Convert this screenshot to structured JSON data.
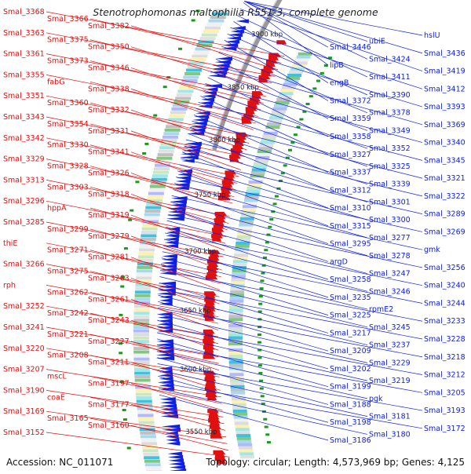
{
  "title": "Stenotrophomonas maltophilia R551-3, complete genome",
  "footer": {
    "accession": "Accession: NC_011071",
    "summary": "Topology: circular; Length: 4,573,969 bp; Genes: 4,125"
  },
  "scale_labels": [
    "3900 kbp",
    "3850 kbp",
    "3800 kbp",
    "3750 kbp",
    "3700 kbp",
    "3650 kbp",
    "3600 kbp",
    "3550 kbp"
  ],
  "left_labels": [
    "Smal_3368",
    "Smal_3366",
    "Smal_3382",
    "Smal_3363",
    "Smal_3375",
    "Smal_3350",
    "Smal_3361",
    "Smal_3373",
    "Smal_3346",
    "Smal_3355",
    "fabG",
    "Smal_3338",
    "Smal_3351",
    "Smal_3360",
    "Smal_3332",
    "Smal_3343",
    "Smal_3354",
    "Smal_3331",
    "Smal_3342",
    "Smal_3330",
    "Smal_3341",
    "Smal_3329",
    "Smal_3328",
    "Smal_3326",
    "Smal_3313",
    "Smal_3303",
    "Smal_3318",
    "Smal_3296",
    "hppA",
    "Smal_3319",
    "Smal_3285",
    "Smal_3299",
    "Smal_3279",
    "thiE",
    "Smal_3271",
    "Smal_3281",
    "Smal_3266",
    "Smal_3275",
    "Smal_3263",
    "rph",
    "Smal_3262",
    "Smal_3261",
    "Smal_3252",
    "Smal_3242",
    "Smal_3243",
    "Smal_3241",
    "Smal_3221",
    "Smal_3227",
    "Smal_3220",
    "Smal_3208",
    "Smal_3211",
    "Smal_3207",
    "mscL",
    "Smal_3197",
    "Smal_3190",
    "coaE",
    "Smal_3177",
    "Smal_3169",
    "Smal_3165",
    "Smal_3160",
    "Smal_3152"
  ],
  "right_labels": [
    "hslU",
    "ubiE",
    "Smal_3446",
    "Smal_3436",
    "Smal_3424",
    "lipB",
    "Smal_3419",
    "Smal_3411",
    "engB",
    "Smal_3412",
    "Smal_3390",
    "Smal_3372",
    "Smal_3393",
    "Smal_3378",
    "Smal_3359",
    "Smal_3369",
    "Smal_3349",
    "Smal_3358",
    "Smal_3340",
    "Smal_3352",
    "Smal_3327",
    "Smal_3345",
    "Smal_3325",
    "Smal_3337",
    "Smal_3321",
    "Smal_3339",
    "Smal_3312",
    "Smal_3322",
    "Smal_3301",
    "Smal_3310",
    "Smal_3289",
    "Smal_3300",
    "Smal_3315",
    "Smal_3269",
    "Smal_3277",
    "Smal_3295",
    "gmk",
    "Smal_3278",
    "argD",
    "Smal_3256",
    "Smal_3247",
    "Smal_3258",
    "Smal_3240",
    "Smal_3246",
    "Smal_3235",
    "Smal_3244",
    "rpmE2",
    "Smal_3225",
    "Smal_3233",
    "Smal_3245",
    "Smal_3217",
    "Smal_3228",
    "Smal_3237",
    "Smal_3209",
    "Smal_3218",
    "Smal_3229",
    "Smal_3202",
    "Smal_3212",
    "Smal_3219",
    "Smal_3199",
    "Smal_3205",
    "pgk",
    "Smal_3188",
    "Smal_3193",
    "Smal_3181",
    "Smal_3198",
    "Smal_3172",
    "Smal_3180",
    "Smal_3186"
  ],
  "colors": {
    "forward": "#e01010",
    "reverse": "#1020e0",
    "backbone": "#999999",
    "gc_marker": "#1a9a1a",
    "text_dark": "#222222"
  }
}
